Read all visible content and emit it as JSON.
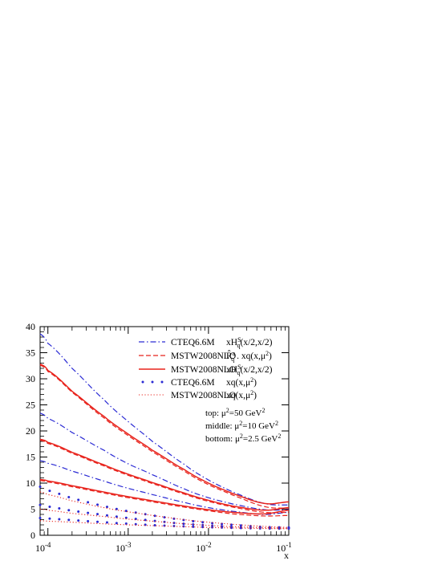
{
  "chart_data": {
    "type": "line",
    "title": "",
    "xlabel": "x",
    "ylabel": "",
    "x_scale": "log",
    "xlim": [
      8e-05,
      0.1
    ],
    "ylim": [
      0,
      40
    ],
    "grid": false,
    "legend_position": "top-right",
    "x_ticks": [
      {
        "value": 0.0001,
        "base": "10",
        "exp": "-4"
      },
      {
        "value": 0.001,
        "base": "10",
        "exp": "-3"
      },
      {
        "value": 0.01,
        "base": "10",
        "exp": "-2"
      },
      {
        "value": 0.1,
        "base": "10",
        "exp": "-1"
      }
    ],
    "y_ticks": [
      0,
      5,
      10,
      15,
      20,
      25,
      30,
      35,
      40
    ],
    "legend": [
      {
        "pdf": "CTEQ6.6M",
        "label_html": "xH<tspan font-size='8' dy='-4'>S</tspan><tspan font-size='8' dy='7' dx='-5'>q</tspan><tspan dy='-3'>(x/2,x/2)</tspan>",
        "style": "dashdot",
        "color": "#2a2ad4"
      },
      {
        "pdf": "MSTW2008NLO",
        "label_html": "R̂<tspan font-size='8' dy='-4'>a</tspan><tspan font-size='8' dy='7' dx='-5'>q</tspan><tspan dy='-3'> . xq(x,μ</tspan><tspan font-size='8' dy='-4'>2</tspan><tspan dy='4'>)</tspan>",
        "style": "dashed",
        "color": "#e8231c"
      },
      {
        "pdf": "MSTW2008NLO",
        "label_html": "xH<tspan font-size='8' dy='-4'>S</tspan><tspan font-size='8' dy='7' dx='-5'>q</tspan><tspan dy='-3'>(x/2,x/2)</tspan>",
        "style": "solid",
        "color": "#e8231c"
      },
      {
        "pdf": "CTEQ6.6M",
        "label_html": "xq(x,μ<tspan font-size='8' dy='-4'>2</tspan><tspan dy='4'>)</tspan>",
        "style": "dots",
        "color": "#2a2ad4"
      },
      {
        "pdf": "MSTW2008NLO",
        "label_html": "xq(x,μ<tspan font-size='8' dy='-4'>2</tspan><tspan dy='4'>)</tspan>",
        "style": "dotted",
        "color": "#e8231c"
      }
    ],
    "annotations": [
      "top: μ<tspan font-size='8' dy='-4'>2</tspan><tspan dy='4'>=50 GeV</tspan><tspan font-size='8' dy='-4'>2</tspan>",
      "middle: μ<tspan font-size='8' dy='-4'>2</tspan><tspan dy='4'>=10 GeV</tspan><tspan font-size='8' dy='-4'>2</tspan>",
      "bottom: μ<tspan font-size='8' dy='-4'>2</tspan><tspan dy='4'>=2.5 GeV</tspan><tspan font-size='8' dy='-4'>2</tspan>"
    ],
    "x": [
      8e-05,
      0.0001,
      0.0002,
      0.0005,
      0.001,
      0.002,
      0.005,
      0.01,
      0.02,
      0.05,
      0.1
    ],
    "series": [
      {
        "style": "dashdot",
        "color": "#2a2ad4",
        "values": [
          38.6,
          36.8,
          32.0,
          26.0,
          21.8,
          18.0,
          13.6,
          10.6,
          8.3,
          6.1,
          5.8
        ]
      },
      {
        "style": "dashdot",
        "color": "#2a2ad4",
        "values": [
          23.4,
          22.4,
          19.7,
          16.3,
          13.7,
          11.6,
          8.9,
          7.2,
          6.0,
          4.9,
          4.9
        ]
      },
      {
        "style": "dashdot",
        "color": "#2a2ad4",
        "values": [
          14.3,
          13.8,
          12.3,
          10.4,
          9.0,
          7.8,
          6.3,
          5.3,
          4.6,
          4.0,
          4.4
        ]
      },
      {
        "style": "solid",
        "color": "#e8231c",
        "values": [
          32.8,
          31.6,
          27.6,
          22.8,
          19.4,
          16.3,
          12.6,
          10.0,
          8.0,
          6.1,
          6.4
        ]
      },
      {
        "style": "solid",
        "color": "#e8231c",
        "values": [
          18.4,
          17.8,
          15.9,
          13.5,
          11.7,
          10.1,
          8.1,
          6.7,
          5.6,
          4.8,
          5.3
        ]
      },
      {
        "style": "solid",
        "color": "#e8231c",
        "values": [
          10.7,
          10.4,
          9.5,
          8.3,
          7.4,
          6.6,
          5.6,
          4.9,
          4.4,
          4.1,
          4.8
        ]
      },
      {
        "style": "dashed",
        "color": "#e8231c",
        "values": [
          32.6,
          31.4,
          27.4,
          22.5,
          19.1,
          16.0,
          12.3,
          9.7,
          7.7,
          5.5,
          5.2
        ]
      },
      {
        "style": "dashed",
        "color": "#e8231c",
        "values": [
          18.2,
          17.6,
          15.7,
          13.3,
          11.5,
          9.9,
          7.9,
          6.5,
          5.4,
          4.4,
          4.4
        ]
      },
      {
        "style": "dashed",
        "color": "#e8231c",
        "values": [
          10.5,
          10.2,
          9.3,
          8.1,
          7.2,
          6.4,
          5.4,
          4.7,
          4.1,
          3.7,
          3.8
        ]
      },
      {
        "style": "dots",
        "color": "#2a2ad4",
        "values": [
          9.3,
          8.6,
          7.1,
          5.6,
          4.6,
          3.8,
          2.9,
          2.4,
          2.0,
          1.6,
          1.5
        ]
      },
      {
        "style": "dots",
        "color": "#2a2ad4",
        "values": [
          5.8,
          5.5,
          4.7,
          3.9,
          3.3,
          2.8,
          2.2,
          1.9,
          1.6,
          1.4,
          1.35
        ]
      },
      {
        "style": "dots",
        "color": "#2a2ad4",
        "values": [
          3.3,
          3.2,
          2.9,
          2.5,
          2.2,
          1.95,
          1.7,
          1.55,
          1.42,
          1.3,
          1.28
        ]
      },
      {
        "style": "dotted",
        "color": "#e8231c",
        "values": [
          8.3,
          7.8,
          6.6,
          5.3,
          4.5,
          3.8,
          3.0,
          2.5,
          2.1,
          1.7,
          1.5
        ]
      },
      {
        "style": "dotted",
        "color": "#e8231c",
        "values": [
          5.0,
          4.8,
          4.2,
          3.6,
          3.1,
          2.7,
          2.2,
          1.9,
          1.65,
          1.45,
          1.35
        ]
      },
      {
        "style": "dotted",
        "color": "#e8231c",
        "values": [
          2.8,
          2.7,
          2.5,
          2.2,
          2.0,
          1.85,
          1.65,
          1.5,
          1.4,
          1.3,
          1.25
        ]
      }
    ]
  }
}
